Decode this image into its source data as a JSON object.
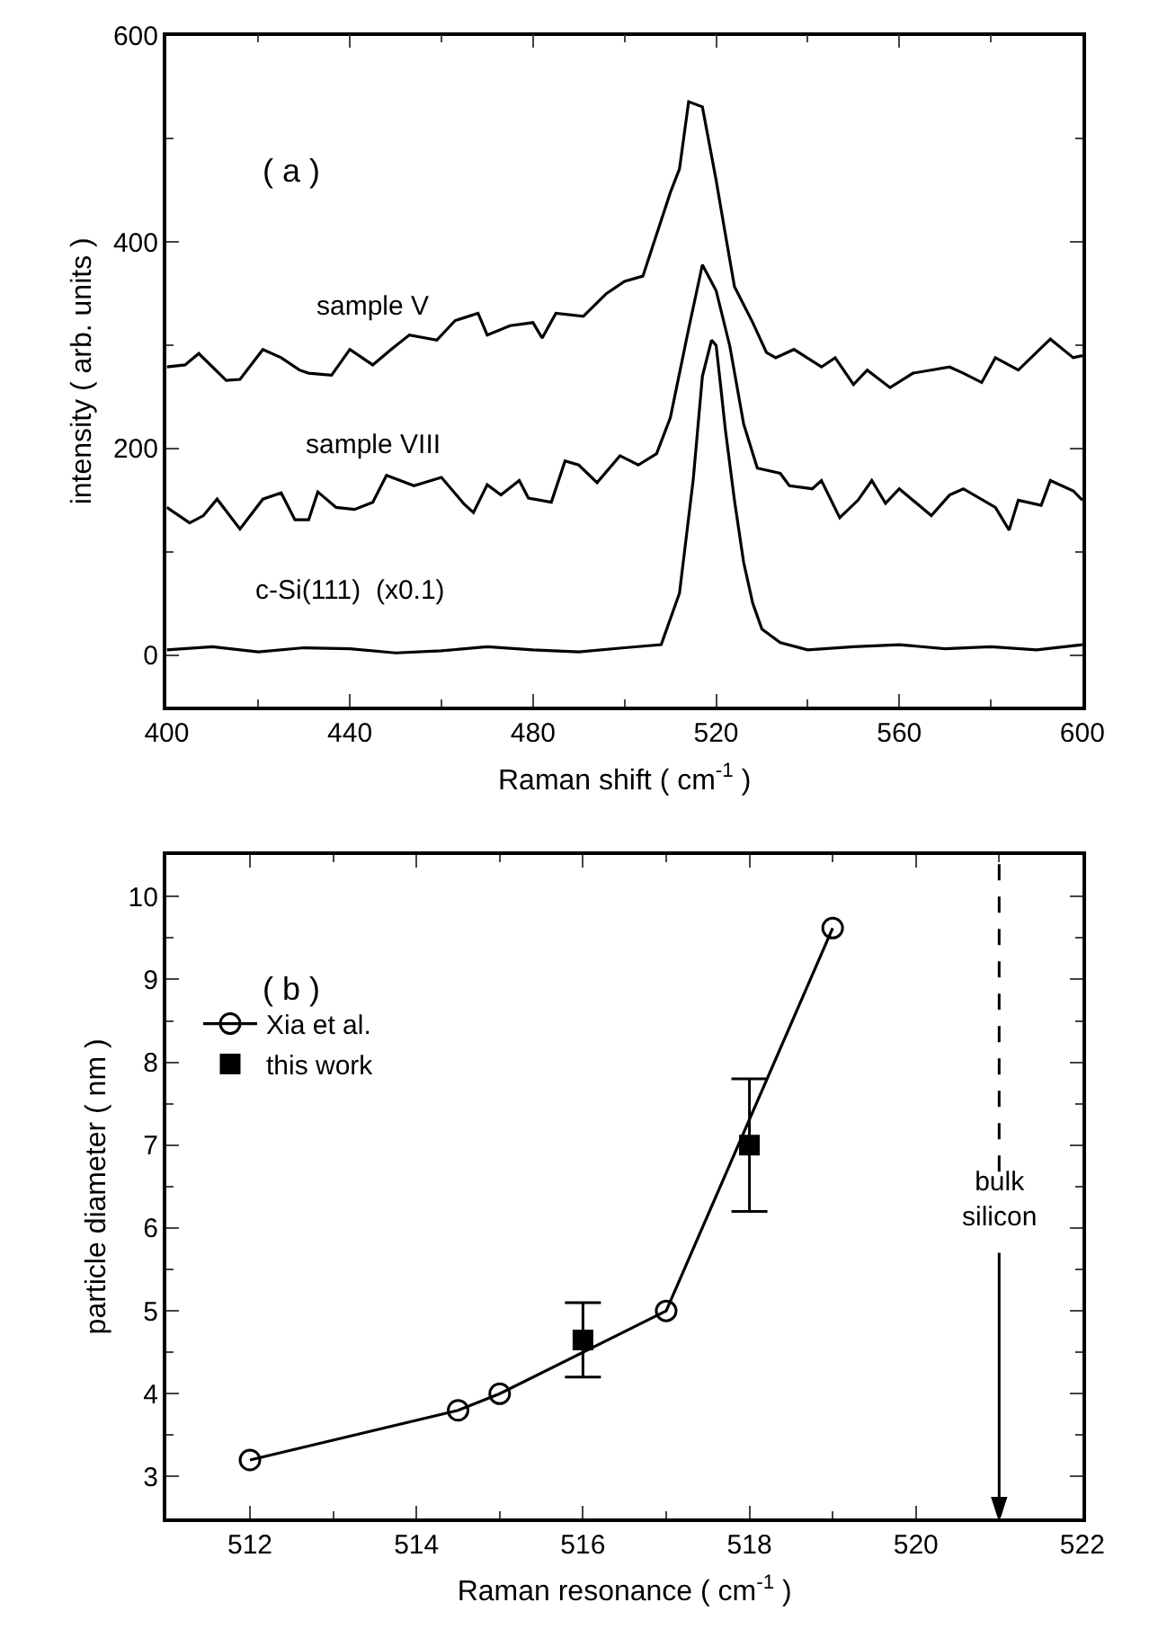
{
  "chart_data": [
    {
      "type": "line",
      "xlabel": "Raman shift ( cm$^{-1}$ )",
      "ylabel": "intensity ( arb. units )",
      "xlim": [
        400,
        600
      ],
      "xticks": [
        400,
        440,
        480,
        520,
        560,
        600
      ],
      "ylim": [
        -50,
        600
      ],
      "yticks": [
        0,
        200,
        400,
        600
      ],
      "legend": false,
      "grid": false,
      "marker": "none",
      "line_style": "solid",
      "annotations": [
        "( a )"
      ],
      "series": [
        {
          "name": "sample V",
          "color": "#000000",
          "x": [
            400,
            404,
            407,
            413,
            416,
            421,
            425,
            429,
            431,
            436,
            440,
            445,
            449,
            453,
            459,
            463,
            468,
            470,
            475,
            480,
            482,
            485,
            491,
            496,
            500,
            504,
            510,
            512,
            514,
            517,
            520,
            522,
            524,
            528,
            531,
            533,
            537,
            543,
            546,
            550,
            553,
            558,
            563,
            571,
            574,
            578,
            581,
            586,
            593,
            598,
            600
          ],
          "values": [
            279,
            281,
            292,
            266,
            267,
            296,
            288,
            276,
            273,
            271,
            296,
            281,
            296,
            310,
            305,
            324,
            331,
            310,
            319,
            322,
            307,
            331,
            328,
            350,
            362,
            367,
            448,
            471,
            536,
            531,
            460,
            408,
            357,
            322,
            293,
            288,
            296,
            279,
            288,
            262,
            276,
            259,
            273,
            279,
            273,
            264,
            288,
            276,
            306,
            288,
            290
          ]
        },
        {
          "name": "sample VIII",
          "color": "#000000",
          "x": [
            400,
            405,
            408,
            411,
            416,
            421,
            425,
            428,
            431,
            433,
            437,
            441,
            445,
            448,
            454,
            460,
            465,
            467,
            470,
            473,
            477,
            479,
            484,
            487,
            490,
            494,
            499,
            503,
            507,
            510,
            514,
            517,
            520,
            523,
            526,
            529,
            534,
            536,
            541,
            543,
            547,
            551,
            554,
            557,
            560,
            567,
            571,
            574,
            581,
            584,
            586,
            591,
            593,
            598,
            600
          ],
          "values": [
            143,
            128,
            135,
            151,
            122,
            151,
            157,
            131,
            131,
            158,
            143,
            141,
            148,
            174,
            164,
            172,
            146,
            138,
            165,
            155,
            169,
            152,
            148,
            188,
            184,
            167,
            193,
            184,
            195,
            230,
            316,
            378,
            353,
            299,
            224,
            181,
            176,
            164,
            161,
            169,
            133,
            150,
            169,
            147,
            161,
            135,
            155,
            161,
            143,
            121,
            150,
            145,
            169,
            159,
            150
          ]
        },
        {
          "name": "c-Si(111)  (x0.1)",
          "color": "#000000",
          "x": [
            400,
            410,
            420,
            430,
            440,
            450,
            460,
            470,
            480,
            490,
            500,
            508,
            512,
            515,
            517,
            519,
            520,
            521,
            522,
            524,
            526,
            528,
            530,
            534,
            540,
            550,
            560,
            570,
            580,
            590,
            600
          ],
          "values": [
            5,
            8,
            3,
            7,
            6,
            2,
            4,
            8,
            5,
            3,
            7,
            10,
            60,
            170,
            270,
            305,
            300,
            260,
            219,
            150,
            90,
            50,
            25,
            12,
            5,
            8,
            10,
            6,
            8,
            5,
            10
          ]
        }
      ]
    },
    {
      "type": "line",
      "xlabel": "Raman resonance ( cm$^{-1}$ )",
      "ylabel": "particle diameter ( nm )",
      "xlim": [
        511,
        522
      ],
      "xticks": [
        512,
        514,
        516,
        518,
        520,
        522
      ],
      "ylim": [
        2.5,
        10.5
      ],
      "yticks": [
        3,
        4,
        5,
        6,
        7,
        8,
        9,
        10
      ],
      "legend": "top left",
      "grid": false,
      "annotations": [
        "( b )"
      ],
      "ref_lines": [
        {
          "axis": "x",
          "value": 521,
          "label": "bulk silicon",
          "line_style": "dashed"
        }
      ],
      "series": [
        {
          "name": "Xia et al.",
          "type": "line",
          "marker": "circle",
          "color": "#000000",
          "x": [
            512,
            514.5,
            515,
            517,
            519
          ],
          "values": [
            3.2,
            3.8,
            4.0,
            5.0,
            9.62
          ]
        },
        {
          "name": "this work",
          "type": "scatter",
          "marker": "square",
          "color": "#000000",
          "x": [
            516,
            518
          ],
          "values": [
            4.65,
            7.0
          ],
          "errors": [
            [
              4.2,
              5.1
            ],
            [
              6.2,
              7.8
            ]
          ]
        }
      ]
    }
  ]
}
